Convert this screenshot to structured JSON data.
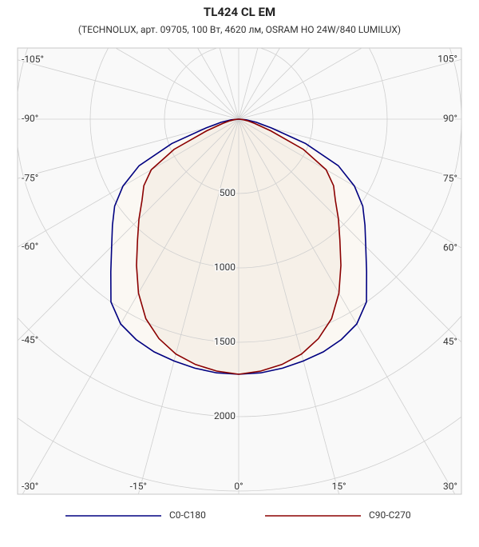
{
  "chart_data": {
    "type": "polar",
    "title": "TL424 CL EM",
    "subtitle": "(TECHNOLUX, арт. 09705, 100 Вт, 4620 лм, OSRAM HO 24W/840 LUMILUX)",
    "angles": [
      0,
      5,
      10,
      15,
      20,
      25,
      30,
      35,
      40,
      45,
      50,
      55,
      60,
      65,
      70,
      75,
      80,
      85,
      90
    ],
    "series": [
      {
        "name": "C0-C180",
        "color": "#000080",
        "fill": "#fbf8f3",
        "values": [
          1715,
          1712,
          1700,
          1683,
          1665,
          1635,
          1590,
          1500,
          1340,
          1210,
          1110,
          1020,
          900,
          740,
          480,
          228,
          120,
          50,
          0
        ]
      },
      {
        "name": "C90-C270",
        "color": "#8b0000",
        "fill": "#f6f0e8",
        "values": [
          1715,
          1700,
          1675,
          1635,
          1570,
          1480,
          1350,
          1200,
          1060,
          950,
          850,
          780,
          680,
          480,
          230,
          110,
          60,
          25,
          0
        ]
      }
    ],
    "rlim": [
      0,
      3000
    ],
    "rticks": [
      500,
      1000,
      1500,
      2000
    ],
    "rgrid": [
      500,
      1000,
      1500,
      2000,
      2500,
      3000
    ],
    "angle_ticks": [
      {
        "value": -105,
        "label": "-105°"
      },
      {
        "value": -90,
        "label": "-90°"
      },
      {
        "value": -75,
        "label": "-75°"
      },
      {
        "value": -60,
        "label": "-60°"
      },
      {
        "value": -45,
        "label": "-45°"
      },
      {
        "value": -30,
        "label": "-30°"
      },
      {
        "value": -15,
        "label": "-15°"
      },
      {
        "value": 0,
        "label": "0°"
      },
      {
        "value": 15,
        "label": "15°"
      },
      {
        "value": 30,
        "label": "30°"
      },
      {
        "value": 45,
        "label": "45°"
      },
      {
        "value": 60,
        "label": "60°"
      },
      {
        "value": 75,
        "label": "75°"
      },
      {
        "value": 90,
        "label": "90°"
      },
      {
        "value": 105,
        "label": "105°"
      }
    ],
    "angle_grid": [
      120,
      135,
      150,
      165,
      180,
      -120,
      -135,
      -150,
      -165
    ]
  }
}
